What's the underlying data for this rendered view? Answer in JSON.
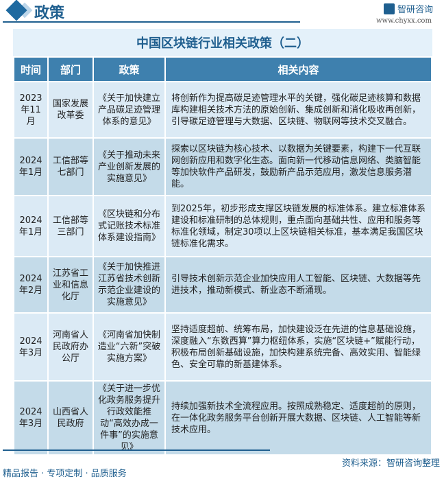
{
  "header": {
    "section_title": "政策",
    "logo_text": "智研咨询",
    "url": "www.chyxx.com"
  },
  "table": {
    "title": "中国区块链行业相关政策（二）",
    "columns": [
      "时间",
      "部门",
      "政策",
      "相关内容"
    ],
    "rows": [
      {
        "time": "2023年11月",
        "dept": "国家发展改革委",
        "policy": "《关于加快建立产品碳足迹管理体系的意见》",
        "content": "将创新作为提高碳足迹管理水平的关键，强化碳足迹核算和数据库构建相关技术方法的原始创新、集成创新和消化吸收再创新，引导碳足迹管理与大数据、区块链、物联网等技术交叉融合。"
      },
      {
        "time": "2024年1月",
        "dept": "工信部等七部门",
        "policy": "《关于推动未来产业创新发展的实施意见》",
        "content": "探索以区块链为核心技术、以数据为关键要素，构建下一代互联网创新应用和数字化生态。面向新一代移动信息网络、类脑智能等加快软件产品研发，鼓励新产品示范应用，激发信息服务潜能。"
      },
      {
        "time": "2024年1月",
        "dept": "工信部等三部门",
        "policy": "《区块链和分布式记账技术标准体系建设指南》",
        "content": "到2025年，初步形成支撑区块链发展的标准体系。建立标准体系建设和标准研制的总体规则，重点面向基础共性、应用和服务等标准化领域，制定30项以上区块链相关标准，基本满足我国区块链标准化需求。"
      },
      {
        "time": "2024年2月",
        "dept": "江苏省工业和信息化厅",
        "policy": "《关于加快推进江苏省技术创新示范企业建设的实施意见》",
        "content": "引导技术创新示范企业加快应用人工智能、区块链、大数据等先进技术，推动新模式、新业态不断涌现。"
      },
      {
        "time": "2024年3月",
        "dept": "河南省人民政府办公厅",
        "policy": "《河南省加快制造业“六新”突破实施方案》",
        "content": "坚持适度超前、统筹布局，加快建设泛在先进的信息基础设施，深度融入“东数西算”算力枢纽体系，实施“区块链+”赋能行动，积极布局创新基础设施，加快构建系统完备、高效实用、智能绿色、安全可靠的新基建体系。"
      },
      {
        "time": "2024年3月",
        "dept": "山西省人民政府",
        "policy": "《关于进一步优化政务服务提升行政效能推动“高效办成一件事”的实施意见》",
        "content": "持续加强新技术全流程应用。按照成熟稳定、适度超前的原则，在一体化政务服务平台创新开展大数据、区块链、人工智能等新技术应用。"
      }
    ]
  },
  "footer": {
    "source": "资料来源：智研咨询整理",
    "tagline": "精品报告 · 专项定制 · 品质服务"
  },
  "colors": {
    "primary": "#1f5f8f",
    "header_bg": "#3e80ae",
    "row_light": "#dbeaf5",
    "row_dark": "#c4dbe9"
  }
}
